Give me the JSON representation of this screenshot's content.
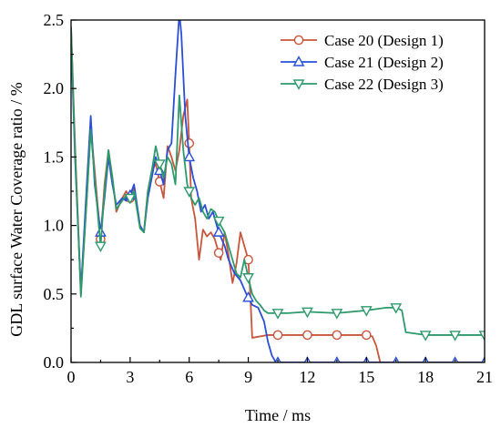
{
  "chart_data": {
    "type": "line",
    "xlabel": "Time / ms",
    "ylabel": "GDL surface Water Coverage ratio / %",
    "xlim": [
      0,
      21
    ],
    "ylim": [
      0,
      2.5
    ],
    "xticks": [
      0,
      3,
      6,
      9,
      12,
      15,
      18,
      21
    ],
    "yticks": [
      0.0,
      0.5,
      1.0,
      1.5,
      2.0,
      2.5
    ],
    "xtick_labels": [
      "0",
      "3",
      "6",
      "9",
      "12",
      "15",
      "18",
      "21"
    ],
    "ytick_labels": [
      "0.0",
      "0.5",
      "1.0",
      "1.5",
      "2.0",
      "2.5"
    ],
    "legend_position": "top-right",
    "series": [
      {
        "name": "Case 20 (Design 1)",
        "color": "#c8553d",
        "marker": "circle",
        "x": [
          0,
          0.2,
          0.5,
          0.8,
          1.0,
          1.2,
          1.5,
          1.7,
          1.9,
          2.1,
          2.3,
          2.6,
          2.8,
          3.0,
          3.2,
          3.5,
          3.7,
          3.9,
          4.1,
          4.3,
          4.5,
          4.7,
          4.9,
          5.1,
          5.3,
          5.5,
          5.7,
          5.9,
          6.0,
          6.1,
          6.3,
          6.5,
          6.7,
          6.9,
          7.1,
          7.3,
          7.6,
          7.8,
          8.0,
          8.2,
          8.4,
          8.6,
          8.8,
          9.0,
          9.1,
          9.2,
          10.0,
          11.0,
          12.0,
          13.0,
          14.0,
          15.0,
          15.3,
          15.5,
          15.7,
          16.0,
          18.0,
          21.0
        ],
        "y": [
          2.45,
          1.6,
          0.5,
          1.2,
          1.72,
          1.4,
          0.9,
          1.3,
          1.55,
          1.35,
          1.1,
          1.2,
          1.25,
          1.2,
          1.28,
          1.0,
          0.95,
          1.25,
          1.4,
          1.45,
          1.32,
          1.2,
          1.58,
          1.5,
          1.4,
          1.55,
          1.8,
          1.92,
          1.6,
          1.2,
          1.05,
          0.75,
          0.97,
          0.92,
          0.95,
          0.9,
          0.75,
          0.95,
          0.78,
          0.58,
          0.72,
          0.95,
          0.85,
          0.75,
          0.5,
          0.18,
          0.2,
          0.2,
          0.2,
          0.2,
          0.2,
          0.2,
          0.19,
          0.12,
          0.0,
          0.0,
          0.0,
          0.0
        ],
        "marker_x": [
          1.5,
          3.0,
          4.5,
          6.0,
          7.5,
          9.0,
          10.5,
          12.0,
          13.5,
          15.0
        ]
      },
      {
        "name": "Case 21 (Design 2)",
        "color": "#2a4fd6",
        "marker": "triangle-up",
        "x": [
          0,
          0.2,
          0.5,
          0.8,
          1.0,
          1.2,
          1.5,
          1.7,
          1.9,
          2.1,
          2.3,
          2.6,
          2.8,
          3.0,
          3.2,
          3.5,
          3.7,
          3.9,
          4.1,
          4.3,
          4.5,
          4.7,
          4.9,
          5.1,
          5.3,
          5.5,
          5.6,
          5.8,
          6.0,
          6.2,
          6.4,
          6.6,
          6.8,
          7.0,
          7.2,
          7.5,
          7.8,
          8.0,
          8.3,
          8.6,
          8.9,
          9.2,
          9.5,
          9.8,
          10.0,
          10.2,
          10.4,
          12.0,
          15.0,
          18.0,
          21.0
        ],
        "y": [
          2.4,
          1.5,
          0.52,
          1.3,
          1.8,
          1.3,
          0.95,
          1.2,
          1.5,
          1.3,
          1.15,
          1.2,
          1.18,
          1.22,
          1.3,
          1.0,
          0.95,
          1.2,
          1.35,
          1.5,
          1.4,
          1.3,
          1.55,
          1.6,
          2.1,
          2.55,
          2.4,
          1.8,
          1.5,
          1.35,
          1.25,
          1.1,
          1.15,
          1.05,
          1.1,
          0.95,
          0.85,
          0.75,
          0.65,
          0.6,
          0.5,
          0.42,
          0.4,
          0.3,
          0.15,
          0.05,
          0.0,
          0.0,
          0.0,
          0.0,
          0.0
        ],
        "marker_x": [
          1.5,
          3.0,
          4.5,
          6.0,
          7.5,
          9.0,
          10.5,
          12.0,
          13.5,
          15.0,
          16.5,
          18.0,
          19.5,
          21.0
        ]
      },
      {
        "name": "Case 22 (Design 3)",
        "color": "#2e9a6c",
        "marker": "triangle-down",
        "x": [
          0,
          0.2,
          0.5,
          0.8,
          1.0,
          1.2,
          1.5,
          1.7,
          1.9,
          2.1,
          2.3,
          2.6,
          2.8,
          3.0,
          3.2,
          3.5,
          3.7,
          3.9,
          4.1,
          4.3,
          4.5,
          4.7,
          4.9,
          5.1,
          5.3,
          5.5,
          5.7,
          5.9,
          6.1,
          6.3,
          6.5,
          6.7,
          6.9,
          7.1,
          7.3,
          7.6,
          7.8,
          8.0,
          8.2,
          8.4,
          8.6,
          8.8,
          9.0,
          9.2,
          9.4,
          9.6,
          9.8,
          10.0,
          11.0,
          12.0,
          13.5,
          15.0,
          16.0,
          16.5,
          16.8,
          17.0,
          18.0,
          19.5,
          21.0
        ],
        "y": [
          2.45,
          1.55,
          0.48,
          1.2,
          1.7,
          1.35,
          0.85,
          1.25,
          1.55,
          1.35,
          1.12,
          1.18,
          1.22,
          1.2,
          1.25,
          0.98,
          0.95,
          1.25,
          1.4,
          1.58,
          1.45,
          1.35,
          1.5,
          1.45,
          1.3,
          1.95,
          1.55,
          1.3,
          1.2,
          1.15,
          1.2,
          1.1,
          1.05,
          1.12,
          1.1,
          1.0,
          0.95,
          0.85,
          0.75,
          0.65,
          0.62,
          0.75,
          0.62,
          0.5,
          0.45,
          0.42,
          0.38,
          0.36,
          0.36,
          0.37,
          0.36,
          0.38,
          0.4,
          0.4,
          0.38,
          0.22,
          0.2,
          0.2,
          0.2
        ],
        "marker_x": [
          1.5,
          3.0,
          4.5,
          6.0,
          7.5,
          9.0,
          10.5,
          12.0,
          13.5,
          15.0,
          16.5,
          18.0,
          19.5,
          21.0
        ]
      }
    ]
  }
}
